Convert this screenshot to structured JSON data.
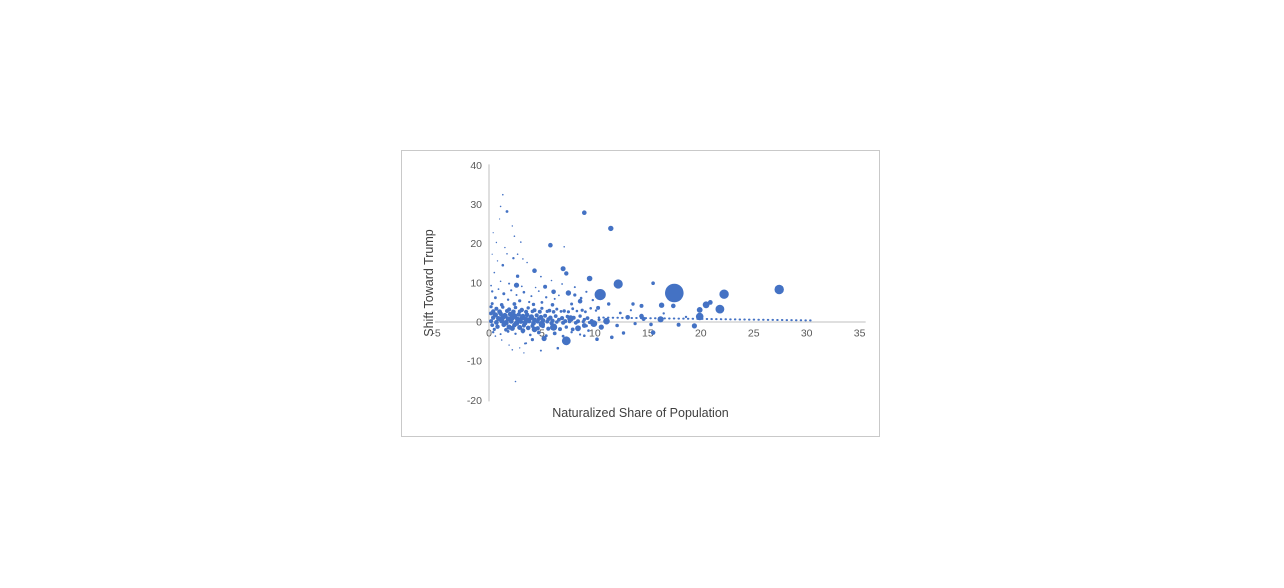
{
  "window": {
    "background": "#ffffff"
  },
  "panel": {
    "border_color": "#c9c9c9",
    "background": "#ffffff"
  },
  "chart_data": {
    "type": "scatter",
    "subtype": "bubble",
    "title": "",
    "xlabel": "Naturalized Share of Population",
    "ylabel": "Shift Toward Trump",
    "xlim": [
      -5,
      35
    ],
    "ylim": [
      -20,
      40
    ],
    "x_ticks": [
      -5,
      0,
      5,
      10,
      15,
      20,
      25,
      30,
      35
    ],
    "y_ticks": [
      40,
      30,
      20,
      10,
      0,
      -10,
      -20
    ],
    "grid": false,
    "legend_position": "none",
    "point_color": "#4472C4",
    "axis_color": "#BFBFBF",
    "tick_label_color": "#595959",
    "axis_title_color": "#404040",
    "trendline": {
      "style": "dotted",
      "color": "#4472C4",
      "x1": 10.35,
      "y1": 1.15,
      "x2": 30.4,
      "y2": 0.4
    },
    "points_format": [
      "x",
      "y",
      "radius_px"
    ],
    "points": [
      [
        0.3,
        7.8,
        1.2
      ],
      [
        0.9,
        8.4,
        0.9
      ],
      [
        1.4,
        7.2,
        1.5
      ],
      [
        2.1,
        8.1,
        1.1
      ],
      [
        2.6,
        6.9,
        1.0
      ],
      [
        3.3,
        7.6,
        1.3
      ],
      [
        4.0,
        6.6,
        1.0
      ],
      [
        4.7,
        7.9,
        0.9
      ],
      [
        5.4,
        6.3,
        1.2
      ],
      [
        6.2,
        5.9,
        1.0
      ],
      [
        0.6,
        6.2,
        1.4
      ],
      [
        1.8,
        5.7,
        1.2
      ],
      [
        2.9,
        5.4,
        1.6
      ],
      [
        3.8,
        5.1,
        1.1
      ],
      [
        5.0,
        5.0,
        1.4
      ],
      [
        6.6,
        6.8,
        0.9
      ],
      [
        0.2,
        9.3,
        0.9
      ],
      [
        1.1,
        10.4,
        0.8
      ],
      [
        0.5,
        12.6,
        0.8
      ],
      [
        1.9,
        9.8,
        1.0
      ],
      [
        3.1,
        9.1,
        0.9
      ],
      [
        4.4,
        8.8,
        0.8
      ],
      [
        0.8,
        15.6,
        0.7
      ],
      [
        1.5,
        19.0,
        0.7
      ],
      [
        2.2,
        24.5,
        0.7
      ],
      [
        0.4,
        22.8,
        0.6
      ],
      [
        1.0,
        26.3,
        0.6
      ],
      [
        3.6,
        15.2,
        0.8
      ],
      [
        4.9,
        11.6,
        0.9
      ],
      [
        5.9,
        10.6,
        0.8
      ],
      [
        6.9,
        9.7,
        0.9
      ],
      [
        8.1,
        8.9,
        1.0
      ],
      [
        9.2,
        7.7,
        1.1
      ],
      [
        8.7,
        6.1,
        1.3
      ],
      [
        9.8,
        5.6,
        1.2
      ],
      [
        7.8,
        4.6,
        1.5
      ],
      [
        6.0,
        4.4,
        1.8
      ],
      [
        4.2,
        4.5,
        1.7
      ],
      [
        2.4,
        4.6,
        1.9
      ],
      [
        1.2,
        4.4,
        1.8
      ],
      [
        0.3,
        4.7,
        1.5
      ],
      [
        0.2,
        3.9,
        1.6
      ],
      [
        0.7,
        3.4,
        2.0
      ],
      [
        1.3,
        3.8,
        1.7
      ],
      [
        1.9,
        3.2,
        2.1
      ],
      [
        2.5,
        3.7,
        1.8
      ],
      [
        3.1,
        3.1,
        2.2
      ],
      [
        3.7,
        3.6,
        1.7
      ],
      [
        4.3,
        3.0,
        2.0
      ],
      [
        5.0,
        3.5,
        1.6
      ],
      [
        5.7,
        2.9,
        1.9
      ],
      [
        6.4,
        3.3,
        1.5
      ],
      [
        7.1,
        2.8,
        1.7
      ],
      [
        7.9,
        3.4,
        1.4
      ],
      [
        8.8,
        3.0,
        1.6
      ],
      [
        9.6,
        3.5,
        1.3
      ],
      [
        0.4,
        2.7,
        2.2
      ],
      [
        1.0,
        2.6,
        2.4
      ],
      [
        1.7,
        2.8,
        2.0
      ],
      [
        2.3,
        2.6,
        2.3
      ],
      [
        2.9,
        2.7,
        1.9
      ],
      [
        3.5,
        2.6,
        2.1
      ],
      [
        4.1,
        2.7,
        1.8
      ],
      [
        4.8,
        2.6,
        2.0
      ],
      [
        5.5,
        2.7,
        1.6
      ],
      [
        6.1,
        2.6,
        1.8
      ],
      [
        6.8,
        2.7,
        1.4
      ],
      [
        7.5,
        2.6,
        1.6
      ],
      [
        8.3,
        2.8,
        1.3
      ],
      [
        9.1,
        2.6,
        1.4
      ],
      [
        10.1,
        2.9,
        1.2
      ],
      [
        0.2,
        2.2,
        2.0
      ],
      [
        0.6,
        1.8,
        2.6
      ],
      [
        1.1,
        2.1,
        2.3
      ],
      [
        1.5,
        1.6,
        2.8
      ],
      [
        2.0,
        2.0,
        2.4
      ],
      [
        2.4,
        1.5,
        2.9
      ],
      [
        2.8,
        1.9,
        2.2
      ],
      [
        3.2,
        1.4,
        2.7
      ],
      [
        3.6,
        1.8,
        2.3
      ],
      [
        4.0,
        1.3,
        2.6
      ],
      [
        4.5,
        1.7,
        2.1
      ],
      [
        4.9,
        1.2,
        2.4
      ],
      [
        5.3,
        1.6,
        2.0
      ],
      [
        5.8,
        1.1,
        2.2
      ],
      [
        6.3,
        1.5,
        1.9
      ],
      [
        6.9,
        1.0,
        2.1
      ],
      [
        7.4,
        1.4,
        1.8
      ],
      [
        8.0,
        1.1,
        2.0
      ],
      [
        8.6,
        1.5,
        1.7
      ],
      [
        9.3,
        1.0,
        1.9
      ],
      [
        0.4,
        1.1,
        2.2
      ],
      [
        0.9,
        0.9,
        2.5
      ],
      [
        1.3,
        1.2,
        2.7
      ],
      [
        1.8,
        0.8,
        2.5
      ],
      [
        2.2,
        1.1,
        2.8
      ],
      [
        2.7,
        0.7,
        2.6
      ],
      [
        3.1,
        1.0,
        2.4
      ],
      [
        3.5,
        0.6,
        2.8
      ],
      [
        3.9,
        0.9,
        2.2
      ],
      [
        4.3,
        0.5,
        2.5
      ],
      [
        4.7,
        0.8,
        2.1
      ],
      [
        5.1,
        0.4,
        2.3
      ],
      [
        5.6,
        0.7,
        2.0
      ],
      [
        6.0,
        0.3,
        2.2
      ],
      [
        6.6,
        0.6,
        1.9
      ],
      [
        7.2,
        0.2,
        2.1
      ],
      [
        7.7,
        0.5,
        1.8
      ],
      [
        8.4,
        0.2,
        2.0
      ],
      [
        9.0,
        0.6,
        1.7
      ],
      [
        9.7,
        0.3,
        1.8
      ],
      [
        10.4,
        0.6,
        1.5
      ],
      [
        0.2,
        0.2,
        2.1
      ],
      [
        0.7,
        -0.1,
        2.4
      ],
      [
        1.2,
        0.3,
        2.6
      ],
      [
        1.6,
        -0.2,
        2.8
      ],
      [
        2.1,
        0.2,
        2.5
      ],
      [
        2.6,
        -0.3,
        2.7
      ],
      [
        3.0,
        0.1,
        2.3
      ],
      [
        3.4,
        -0.2,
        2.6
      ],
      [
        3.8,
        0.2,
        2.2
      ],
      [
        4.2,
        -0.3,
        2.4
      ],
      [
        4.6,
        0.1,
        2.0
      ],
      [
        5.0,
        -0.2,
        2.3
      ],
      [
        5.5,
        0.1,
        1.9
      ],
      [
        5.9,
        -0.3,
        2.1
      ],
      [
        6.4,
        0.0,
        1.8
      ],
      [
        7.0,
        -0.2,
        2.0
      ],
      [
        7.6,
        0.1,
        1.7
      ],
      [
        8.2,
        -0.2,
        1.9
      ],
      [
        8.9,
        0.1,
        1.6
      ],
      [
        9.5,
        -0.1,
        1.7
      ],
      [
        0.3,
        -0.8,
        1.9
      ],
      [
        0.8,
        -1.2,
        2.2
      ],
      [
        1.4,
        -0.7,
        2.4
      ],
      [
        1.9,
        -1.3,
        2.6
      ],
      [
        2.4,
        -0.8,
        2.3
      ],
      [
        2.9,
        -1.4,
        2.5
      ],
      [
        3.3,
        -0.9,
        2.1
      ],
      [
        3.7,
        -1.5,
        2.3
      ],
      [
        4.1,
        -1.0,
        2.0
      ],
      [
        4.6,
        -1.6,
        2.2
      ],
      [
        5.1,
        -1.1,
        1.9
      ],
      [
        5.6,
        -1.7,
        2.1
      ],
      [
        6.1,
        -1.2,
        1.8
      ],
      [
        6.7,
        -1.8,
        2.0
      ],
      [
        7.3,
        -1.3,
        1.7
      ],
      [
        7.9,
        -1.9,
        1.9
      ],
      [
        8.5,
        -1.4,
        1.6
      ],
      [
        9.2,
        -1.0,
        1.5
      ],
      [
        0.5,
        -1.9,
        1.6
      ],
      [
        1.6,
        -2.0,
        1.8
      ],
      [
        0.4,
        -2.6,
        1.2
      ],
      [
        1.1,
        -3.1,
        1.0
      ],
      [
        1.8,
        -2.4,
        1.4
      ],
      [
        2.5,
        -3.0,
        1.2
      ],
      [
        3.2,
        -2.5,
        1.6
      ],
      [
        3.9,
        -3.3,
        1.3
      ],
      [
        4.7,
        -2.7,
        1.8
      ],
      [
        5.4,
        -3.5,
        1.5
      ],
      [
        6.2,
        -2.9,
        1.9
      ],
      [
        7.0,
        -3.6,
        1.4
      ],
      [
        7.8,
        -2.6,
        1.2
      ],
      [
        8.6,
        -3.2,
        1.1
      ],
      [
        5.2,
        -4.2,
        2.6
      ],
      [
        4.1,
        -4.5,
        1.6
      ],
      [
        3.4,
        -5.5,
        1.0
      ],
      [
        4.9,
        -7.3,
        1.0
      ],
      [
        6.5,
        -6.7,
        1.3
      ],
      [
        9.4,
        -2.2,
        1.3
      ],
      [
        9.0,
        -3.5,
        1.3
      ],
      [
        3.5,
        -5.4,
        1.0
      ],
      [
        2.2,
        -7.1,
        0.8
      ],
      [
        1.2,
        -4.6,
        0.8
      ],
      [
        0.6,
        -3.6,
        0.8
      ],
      [
        1.9,
        -5.9,
        0.7
      ],
      [
        2.9,
        -6.6,
        0.7
      ],
      [
        3.3,
        -7.9,
        0.7
      ],
      [
        6.1,
        -1.3,
        3.6
      ],
      [
        7.7,
        0.9,
        3.3
      ],
      [
        5.0,
        -0.6,
        3.2
      ],
      [
        8.4,
        -1.6,
        2.9
      ],
      [
        9.0,
        -0.9,
        2.4
      ],
      [
        4.3,
        -1.9,
        2.8
      ],
      [
        3.2,
        -2.2,
        2.4
      ],
      [
        2.2,
        -1.6,
        2.6
      ],
      [
        17.5,
        7.4,
        9.3
      ],
      [
        12.2,
        9.7,
        4.6
      ],
      [
        10.5,
        7.0,
        5.6
      ],
      [
        27.4,
        8.3,
        4.7
      ],
      [
        22.2,
        7.1,
        4.7
      ],
      [
        21.8,
        3.3,
        4.4
      ],
      [
        20.5,
        4.4,
        3.4
      ],
      [
        20.9,
        5.0,
        2.4
      ],
      [
        19.9,
        3.1,
        2.9
      ],
      [
        19.9,
        1.4,
        3.8
      ],
      [
        16.2,
        0.7,
        3.1
      ],
      [
        16.3,
        4.3,
        2.7
      ],
      [
        17.4,
        4.1,
        2.3
      ],
      [
        14.4,
        4.1,
        2.0
      ],
      [
        13.6,
        4.6,
        1.7
      ],
      [
        14.4,
        1.5,
        2.3
      ],
      [
        15.5,
        9.9,
        1.8
      ],
      [
        16.5,
        2.2,
        1.2
      ],
      [
        17.9,
        -0.7,
        2.0
      ],
      [
        18.6,
        1.3,
        1.2
      ],
      [
        19.4,
        -1.0,
        2.6
      ],
      [
        15.5,
        -2.7,
        2.3
      ],
      [
        9.0,
        27.9,
        2.3
      ],
      [
        11.5,
        23.9,
        2.7
      ],
      [
        5.8,
        19.6,
        2.3
      ],
      [
        1.7,
        28.2,
        1.4
      ],
      [
        1.1,
        29.5,
        0.8
      ],
      [
        1.3,
        32.5,
        0.8
      ],
      [
        7.0,
        13.6,
        2.5
      ],
      [
        7.3,
        12.4,
        2.2
      ],
      [
        9.5,
        11.1,
        2.8
      ],
      [
        2.6,
        9.4,
        2.6
      ],
      [
        5.3,
        9.0,
        2.0
      ],
      [
        6.1,
        7.7,
        2.3
      ],
      [
        4.3,
        13.1,
        2.3
      ],
      [
        2.7,
        11.7,
        1.7
      ],
      [
        1.3,
        14.5,
        1.3
      ],
      [
        2.3,
        16.3,
        1.2
      ],
      [
        3.2,
        16.1,
        0.8
      ],
      [
        1.7,
        17.4,
        0.8
      ],
      [
        2.7,
        17.3,
        0.8
      ],
      [
        2.4,
        21.9,
        0.8
      ],
      [
        3.0,
        20.4,
        0.8
      ],
      [
        0.7,
        20.3,
        0.7
      ],
      [
        0.3,
        17.3,
        0.6
      ],
      [
        7.1,
        19.2,
        0.8
      ],
      [
        7.5,
        7.4,
        2.7
      ],
      [
        8.6,
        5.3,
        2.3
      ],
      [
        8.1,
        6.9,
        1.6
      ],
      [
        10.3,
        3.6,
        2.0
      ],
      [
        11.3,
        4.6,
        1.7
      ],
      [
        13.1,
        1.2,
        2.3
      ],
      [
        11.1,
        0.2,
        3.3
      ],
      [
        12.7,
        -2.8,
        1.7
      ],
      [
        11.6,
        -3.9,
        1.8
      ],
      [
        7.3,
        -4.8,
        4.4
      ],
      [
        2.5,
        -15.2,
        0.8
      ],
      [
        12.4,
        2.3,
        1.4
      ],
      [
        13.4,
        3.0,
        1.1
      ],
      [
        10.2,
        -4.4,
        1.8
      ],
      [
        9.9,
        -0.4,
        3.4
      ],
      [
        10.6,
        -1.3,
        2.6
      ],
      [
        12.1,
        -0.9,
        1.8
      ],
      [
        13.8,
        -0.4,
        1.6
      ],
      [
        14.6,
        0.8,
        2.1
      ],
      [
        15.3,
        -0.6,
        1.8
      ]
    ]
  }
}
